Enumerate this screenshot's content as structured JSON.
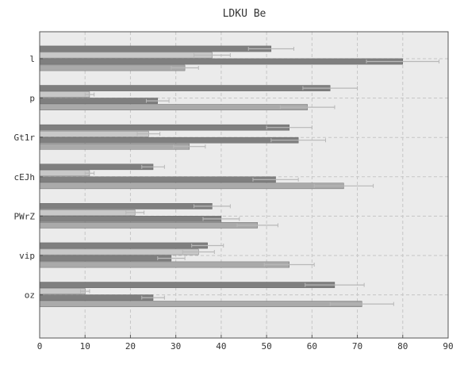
{
  "chart_data": {
    "type": "bar",
    "orientation": "horizontal",
    "title": "LDKU Be",
    "xlabel": "",
    "ylabel": "",
    "xlim": [
      0,
      90
    ],
    "xticks": [
      0,
      10,
      20,
      30,
      40,
      50,
      60,
      70,
      80,
      90
    ],
    "grid": true,
    "legend": "none",
    "categories": [
      "l",
      "p",
      "Gt1r",
      "cEJh",
      "PWrZ",
      "vip",
      "oz"
    ],
    "series": [
      {
        "values": [
          51,
          64,
          55,
          25,
          38,
          37,
          65
        ],
        "errors": [
          5,
          6,
          5,
          2.5,
          4,
          3.5,
          6.5
        ],
        "color": "#7f7f7f"
      },
      {
        "values": [
          38,
          11,
          24,
          11,
          21,
          35,
          10
        ],
        "errors": [
          4,
          1,
          2.5,
          1,
          2,
          3.5,
          1
        ],
        "color": "#c8c8c8"
      },
      {
        "values": [
          80,
          26,
          57,
          52,
          40,
          29,
          25
        ],
        "errors": [
          8,
          2.5,
          6,
          5,
          4,
          3,
          2.5
        ],
        "color": "#7f7f7f"
      },
      {
        "values": [
          32,
          59,
          33,
          67,
          48,
          55,
          71
        ],
        "errors": [
          3,
          6,
          3.5,
          6.5,
          4.5,
          5.5,
          7
        ],
        "color": "#aaaaaa"
      }
    ],
    "colors": {
      "background": "#ebebeb",
      "grid": "#c6c6c6",
      "errorbar": "#b8b8b8"
    }
  }
}
